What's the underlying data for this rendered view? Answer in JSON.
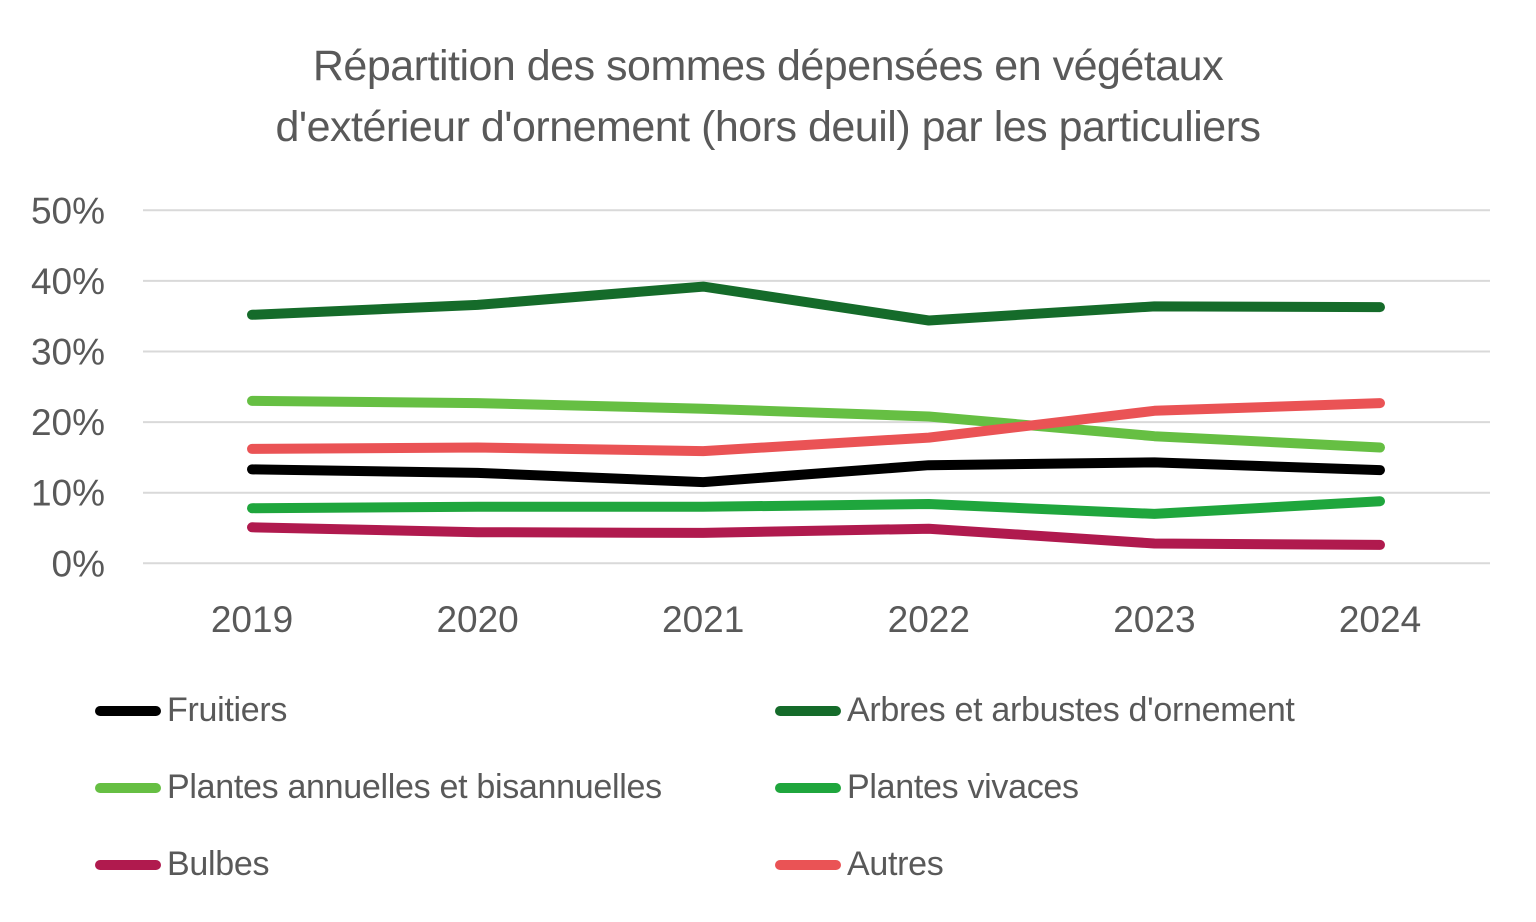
{
  "chart_data": {
    "type": "line",
    "title": "Répartition des sommes dépensées en végétaux d'extérieur d'ornement (hors deuil) par les particuliers",
    "title_lines": [
      "Répartition des sommes dépensées en végétaux",
      "d'extérieur d'ornement (hors deuil) par les particuliers"
    ],
    "x": [
      2019,
      2020,
      2021,
      2022,
      2023,
      2024
    ],
    "x_tick_labels": [
      "2019",
      "2020",
      "2021",
      "2022",
      "2023",
      "2024"
    ],
    "y_axis": {
      "min": 0,
      "max": 50,
      "tick_values": [
        0,
        10,
        20,
        30,
        40,
        50
      ],
      "tick_labels": [
        "0%",
        "10%",
        "20%",
        "30%",
        "40%",
        "50%"
      ],
      "unit": "%"
    },
    "grid": true,
    "xlabel": "",
    "ylabel": "",
    "series": [
      {
        "name": "Fruitiers",
        "color": "#000000",
        "values": [
          13.3,
          12.8,
          11.5,
          13.9,
          14.3,
          13.2
        ]
      },
      {
        "name": "Arbres et arbustes d'ornement",
        "color": "#156B2A",
        "values": [
          35.2,
          36.6,
          39.2,
          34.4,
          36.4,
          36.3
        ]
      },
      {
        "name": "Plantes annuelles et bisannuelles",
        "color": "#66BF43",
        "values": [
          23.0,
          22.7,
          21.9,
          20.8,
          18.0,
          16.4
        ]
      },
      {
        "name": "Plantes vivaces",
        "color": "#1FA63D",
        "values": [
          7.8,
          8.0,
          8.0,
          8.4,
          7.0,
          8.8
        ]
      },
      {
        "name": "Bulbes",
        "color": "#B01A4E",
        "values": [
          5.1,
          4.4,
          4.3,
          4.9,
          2.8,
          2.6
        ]
      },
      {
        "name": "Autres",
        "color": "#EA5355",
        "values": [
          16.2,
          16.4,
          15.9,
          17.8,
          21.6,
          22.7
        ]
      }
    ],
    "legend_position": "bottom",
    "legend_columns": [
      [
        "Fruitiers",
        "Plantes annuelles et bisannuelles",
        "Bulbes"
      ],
      [
        "Arbres et arbustes d'ornement",
        "Plantes vivaces",
        "Autres"
      ]
    ]
  },
  "styles": {
    "title_color": "#595959",
    "axis_text_color": "#595959",
    "gridline_color": "#D9D9D9",
    "background": "#FFFFFF"
  }
}
